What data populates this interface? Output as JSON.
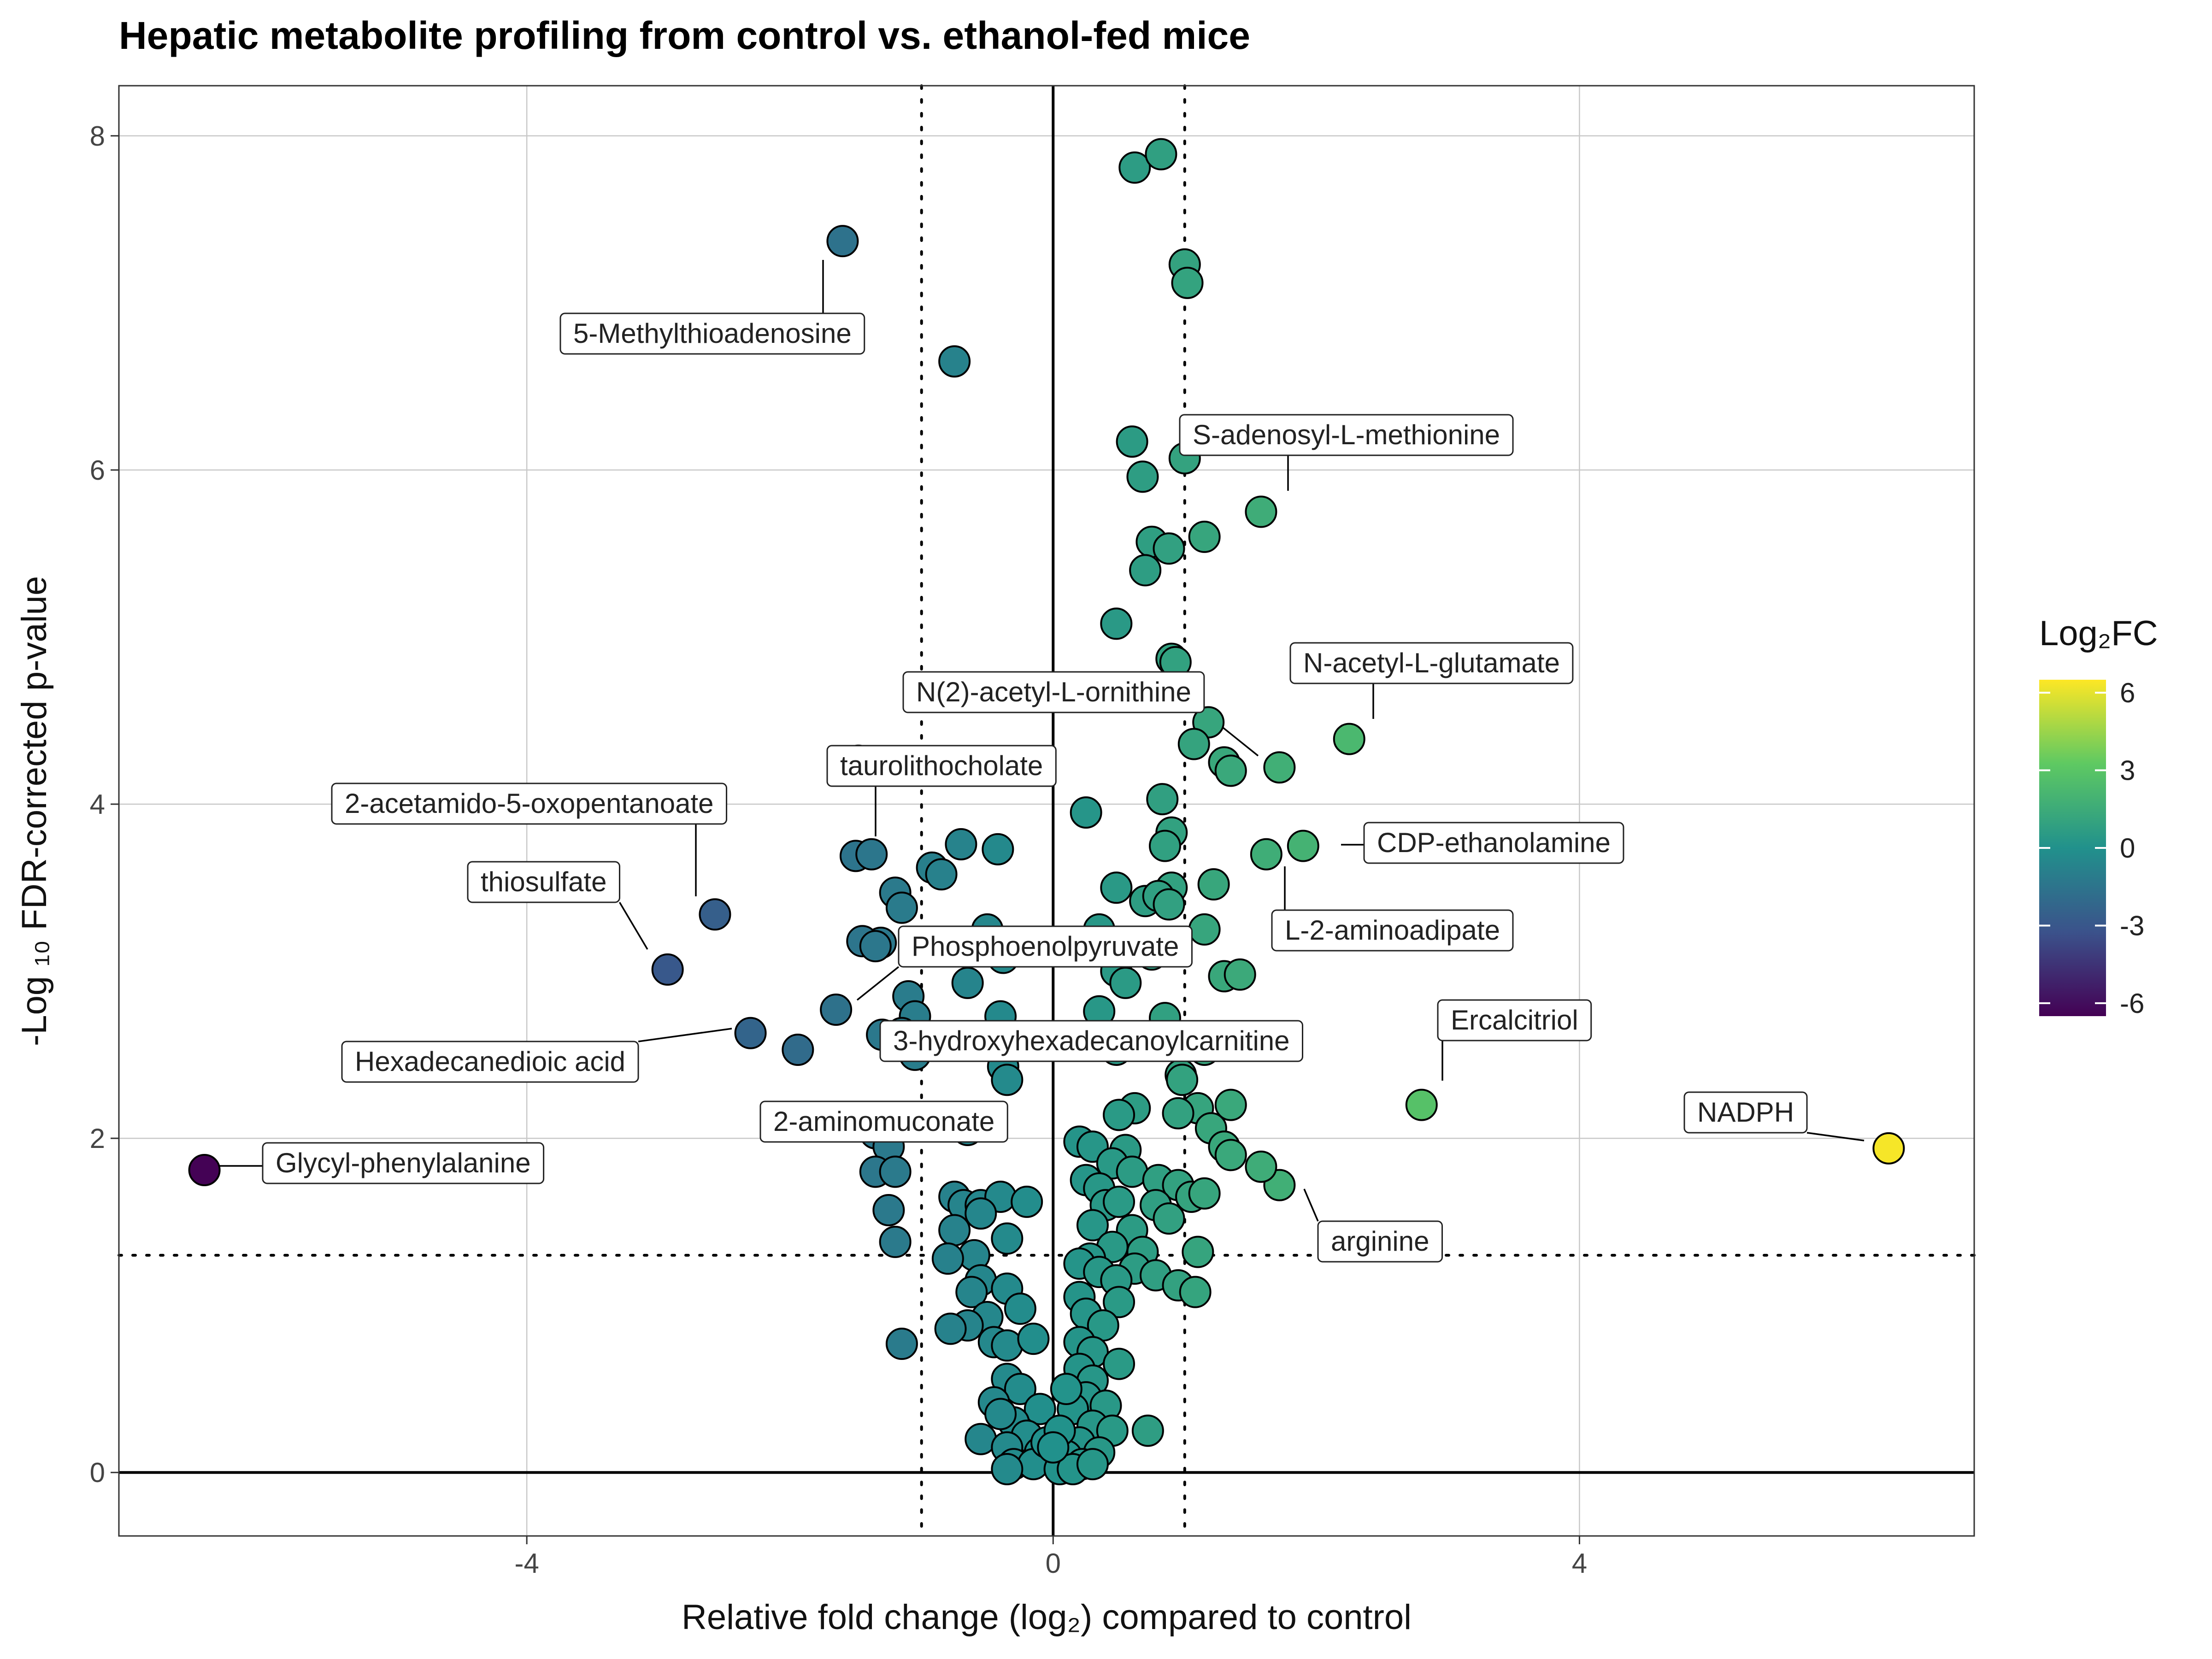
{
  "chart_data": {
    "type": "scatter",
    "title": "Hepatic metabolite profiling from control vs. ethanol-fed mice",
    "xlabel": "Relative fold change (log₂) compared to control",
    "ylabel": "-Log ₁₀ FDR-corrected p-value",
    "xlim": [
      -7.1,
      7.0
    ],
    "ylim": [
      -0.38,
      8.3
    ],
    "x_ticks": [
      -4,
      0,
      4
    ],
    "x_tick_labels": [
      "-4",
      "0",
      "4"
    ],
    "y_ticks": [
      0,
      2,
      4,
      6,
      8
    ],
    "y_tick_labels": [
      "0",
      "2",
      "4",
      "6",
      "8"
    ],
    "grid": true,
    "thresholds": {
      "fold_change": [
        -1,
        1
      ],
      "p_value": 1.3
    },
    "color_scale": {
      "name": "viridis",
      "title": "Log₂FC",
      "range": [
        -6.5,
        6.5
      ],
      "ticks": [
        -6,
        -3,
        0,
        3,
        6
      ],
      "tick_labels": [
        "-6",
        "-3",
        "0",
        "3",
        "6"
      ],
      "colors": [
        "#440154",
        "#3b528b",
        "#21918c",
        "#5ec962",
        "#fde725"
      ]
    },
    "labels": [
      {
        "name": "5-Methylthioadenosine",
        "x": -1.6,
        "y": 7.37
      },
      {
        "name": "S-adenosyl-L-methionine",
        "x": 1.58,
        "y": 5.75
      },
      {
        "name": "N-acetyl-L-glutamate",
        "x": 2.25,
        "y": 4.39
      },
      {
        "name": "N(2)-acetyl-L-ornithine",
        "x": 1.7,
        "y": 4.22
      },
      {
        "name": "taurolithocholate",
        "x": -1.5,
        "y": 3.69
      },
      {
        "name": "2-acetamido-5-oxopentanoate",
        "x": -2.57,
        "y": 3.34
      },
      {
        "name": "CDP-ethanolamine",
        "x": 1.9,
        "y": 3.75
      },
      {
        "name": "L-2-aminoadipate",
        "x": 1.62,
        "y": 3.7
      },
      {
        "name": "thiosulfate",
        "x": -2.93,
        "y": 3.01
      },
      {
        "name": "Phosphoenolpyruvate",
        "x": -1.31,
        "y": 3.17
      },
      {
        "name": "3-hydroxyhexadecanoylcarnitine",
        "x": -1.65,
        "y": 2.77
      },
      {
        "name": "Hexadecanedioic acid",
        "x": -2.3,
        "y": 2.63
      },
      {
        "name": "2-aminomuconate",
        "x": -1.94,
        "y": 2.53
      },
      {
        "name": "Ercalcitriol",
        "x": 2.8,
        "y": 2.2
      },
      {
        "name": "NADPH",
        "x": 6.35,
        "y": 1.94
      },
      {
        "name": "Glycyl-phenylalanine",
        "x": -6.45,
        "y": 1.81
      },
      {
        "name": "arginine",
        "x": 1.72,
        "y": 1.72
      }
    ],
    "points": [
      [
        -6.45,
        1.81
      ],
      [
        6.35,
        1.94
      ],
      [
        2.8,
        2.2
      ],
      [
        2.25,
        4.39
      ],
      [
        1.9,
        3.75
      ],
      [
        1.62,
        3.7
      ],
      [
        1.72,
        4.22
      ],
      [
        1.58,
        5.75
      ],
      [
        1.72,
        1.72
      ],
      [
        -1.6,
        7.37
      ],
      [
        -0.75,
        6.65
      ],
      [
        -2.57,
        3.34
      ],
      [
        -2.93,
        3.01
      ],
      [
        -2.3,
        2.63
      ],
      [
        -1.94,
        2.53
      ],
      [
        -1.5,
        3.69
      ],
      [
        -1.31,
        3.17
      ],
      [
        -1.65,
        2.77
      ],
      [
        0.62,
        7.81
      ],
      [
        0.82,
        7.89
      ],
      [
        1.0,
        7.23
      ],
      [
        1.02,
        7.12
      ],
      [
        0.6,
        6.17
      ],
      [
        1.0,
        6.07
      ],
      [
        0.68,
        5.96
      ],
      [
        1.15,
        5.6
      ],
      [
        0.75,
        5.57
      ],
      [
        0.88,
        5.53
      ],
      [
        0.7,
        5.4
      ],
      [
        0.48,
        5.08
      ],
      [
        0.9,
        4.87
      ],
      [
        0.93,
        4.85
      ],
      [
        1.18,
        4.49
      ],
      [
        1.07,
        4.36
      ],
      [
        1.3,
        4.25
      ],
      [
        1.35,
        4.2
      ],
      [
        0.83,
        4.03
      ],
      [
        0.25,
        3.95
      ],
      [
        0.9,
        3.83
      ],
      [
        0.85,
        3.75
      ],
      [
        0.48,
        3.5
      ],
      [
        0.9,
        3.5
      ],
      [
        1.22,
        3.52
      ],
      [
        0.7,
        3.42
      ],
      [
        0.8,
        3.45
      ],
      [
        0.88,
        3.4
      ],
      [
        -1.48,
        4.26
      ],
      [
        -1.38,
        3.7
      ],
      [
        -0.7,
        3.76
      ],
      [
        -0.42,
        3.73
      ],
      [
        -0.92,
        3.62
      ],
      [
        -0.85,
        3.58
      ],
      [
        -1.2,
        3.47
      ],
      [
        -1.15,
        3.38
      ],
      [
        -1.45,
        3.18
      ],
      [
        -1.35,
        3.15
      ],
      [
        0.35,
        3.25
      ],
      [
        1.15,
        3.25
      ],
      [
        0.75,
        3.1
      ],
      [
        0.48,
        3.0
      ],
      [
        0.55,
        2.93
      ],
      [
        1.3,
        2.97
      ],
      [
        1.42,
        2.98
      ],
      [
        0.35,
        2.76
      ],
      [
        0.85,
        2.72
      ],
      [
        -0.5,
        3.25
      ],
      [
        -0.38,
        3.08
      ],
      [
        -0.65,
        2.93
      ],
      [
        -1.1,
        2.85
      ],
      [
        -1.05,
        2.73
      ],
      [
        -0.4,
        2.73
      ],
      [
        -1.15,
        2.63
      ],
      [
        -0.85,
        2.61
      ],
      [
        -0.7,
        2.6
      ],
      [
        -1.3,
        2.62
      ],
      [
        -1.05,
        2.5
      ],
      [
        -0.38,
        2.43
      ],
      [
        -0.35,
        2.35
      ],
      [
        0.48,
        2.53
      ],
      [
        1.15,
        2.53
      ],
      [
        0.97,
        2.38
      ],
      [
        0.98,
        2.35
      ],
      [
        1.35,
        2.2
      ],
      [
        0.62,
        2.18
      ],
      [
        1.1,
        2.18
      ],
      [
        0.5,
        2.14
      ],
      [
        0.95,
        2.15
      ],
      [
        1.2,
        2.06
      ],
      [
        1.3,
        1.95
      ],
      [
        1.35,
        1.9
      ],
      [
        1.58,
        1.83
      ],
      [
        -1.35,
        2.03
      ],
      [
        -0.65,
        2.05
      ],
      [
        -1.25,
        1.95
      ],
      [
        -1.35,
        1.8
      ],
      [
        -1.2,
        1.8
      ],
      [
        -1.25,
        1.57
      ],
      [
        -1.2,
        1.38
      ],
      [
        -0.75,
        1.65
      ],
      [
        -0.68,
        1.6
      ],
      [
        -0.55,
        1.6
      ],
      [
        -0.4,
        1.65
      ],
      [
        -0.2,
        1.62
      ],
      [
        -0.55,
        1.55
      ],
      [
        -0.35,
        1.4
      ],
      [
        -0.75,
        1.45
      ],
      [
        -0.6,
        1.3
      ],
      [
        -0.8,
        1.28
      ],
      [
        -0.55,
        1.15
      ],
      [
        -0.62,
        1.08
      ],
      [
        -0.35,
        1.1
      ],
      [
        -0.5,
        0.93
      ],
      [
        -0.25,
        0.98
      ],
      [
        -0.45,
        0.78
      ],
      [
        -1.15,
        0.77
      ],
      [
        -0.65,
        0.88
      ],
      [
        -0.78,
        0.86
      ],
      [
        -0.35,
        0.76
      ],
      [
        -0.15,
        0.8
      ],
      [
        -0.35,
        0.56
      ],
      [
        -0.25,
        0.5
      ],
      [
        -0.45,
        0.42
      ],
      [
        -0.1,
        0.38
      ],
      [
        -0.3,
        0.3
      ],
      [
        -0.4,
        0.35
      ],
      [
        -0.2,
        0.22
      ],
      [
        -0.55,
        0.2
      ],
      [
        -0.1,
        0.12
      ],
      [
        -0.35,
        0.15
      ],
      [
        -0.3,
        0.05
      ],
      [
        -0.15,
        0.05
      ],
      [
        -0.05,
        0.18
      ],
      [
        -0.35,
        0.02
      ],
      [
        0.2,
        1.98
      ],
      [
        0.3,
        1.95
      ],
      [
        0.55,
        1.93
      ],
      [
        0.45,
        1.85
      ],
      [
        0.6,
        1.8
      ],
      [
        0.8,
        1.75
      ],
      [
        0.95,
        1.72
      ],
      [
        1.05,
        1.65
      ],
      [
        1.15,
        1.67
      ],
      [
        0.25,
        1.75
      ],
      [
        0.35,
        1.7
      ],
      [
        0.4,
        1.6
      ],
      [
        0.5,
        1.62
      ],
      [
        0.78,
        1.6
      ],
      [
        0.88,
        1.52
      ],
      [
        0.6,
        1.45
      ],
      [
        0.3,
        1.48
      ],
      [
        0.45,
        1.35
      ],
      [
        0.68,
        1.32
      ],
      [
        1.1,
        1.32
      ],
      [
        0.28,
        1.28
      ],
      [
        0.62,
        1.22
      ],
      [
        0.78,
        1.18
      ],
      [
        0.2,
        1.25
      ],
      [
        0.35,
        1.2
      ],
      [
        0.48,
        1.15
      ],
      [
        0.95,
        1.12
      ],
      [
        1.08,
        1.08
      ],
      [
        0.2,
        1.05
      ],
      [
        0.5,
        1.02
      ],
      [
        0.25,
        0.95
      ],
      [
        0.38,
        0.88
      ],
      [
        0.2,
        0.78
      ],
      [
        0.3,
        0.72
      ],
      [
        0.2,
        0.62
      ],
      [
        0.3,
        0.55
      ],
      [
        0.5,
        0.65
      ],
      [
        0.25,
        0.45
      ],
      [
        0.4,
        0.4
      ],
      [
        0.15,
        0.38
      ],
      [
        0.3,
        0.28
      ],
      [
        0.45,
        0.25
      ],
      [
        0.72,
        0.25
      ],
      [
        0.2,
        0.18
      ],
      [
        0.35,
        0.12
      ],
      [
        0.1,
        0.1
      ],
      [
        0.22,
        0.05
      ],
      [
        0.05,
        0.02
      ],
      [
        0.15,
        0.02
      ],
      [
        0.3,
        0.05
      ],
      [
        0.05,
        0.25
      ],
      [
        0.1,
        0.5
      ],
      [
        0.0,
        0.15
      ]
    ]
  }
}
